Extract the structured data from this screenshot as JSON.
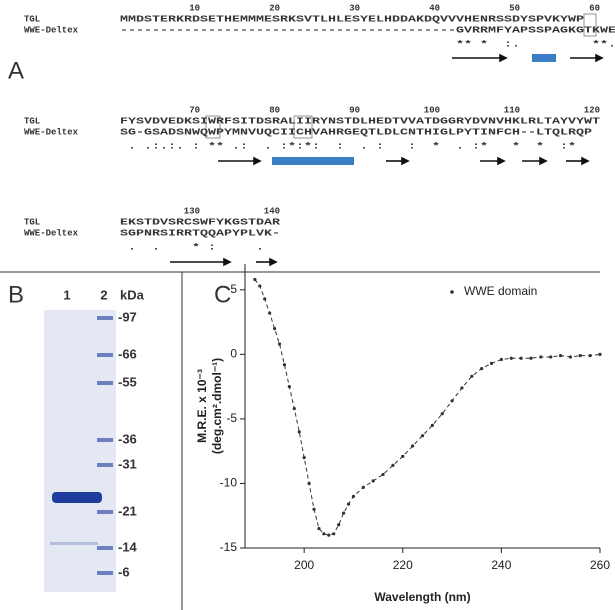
{
  "panel_a": {
    "label": "A",
    "blocks": [
      {
        "ruler": [
          "10",
          "20",
          "30",
          "40",
          "50",
          "60"
        ],
        "rows": [
          {
            "name": "TGL",
            "seq": "MMDSTERKRDSETHEMMMESRKSVTLHLESYELHDDAKDQVVVHENRSSDYSPVKYWP"
          },
          {
            "name": "WWE-Deltex",
            "seq": "------------------------------------------GVRRMFYAPSSPAGKGTKWEV"
          }
        ],
        "conservation": "                                          ** *  :.         **.  :*:*"
      },
      {
        "ruler": [
          "70",
          "80",
          "90",
          "100",
          "110",
          "120"
        ],
        "rows": [
          {
            "name": "TGL",
            "seq": "FYSVDVEDKSIWRFSITDSRALIIRYNSTDLHEDTVVATDGGRYDVNVHKLRLTAYVYWT"
          },
          {
            "name": "WWE-Deltex",
            "seq": "SG-GSADSNWQWPYMNVUQCIICHVAHRGEQTLDLCNTHIGLPYTINFCH--LTQLRQP"
          }
        ],
        "conservation": " . .:.:. : ** .:  . :*:*:  :  . :   :  *  . :*   *  *  :*"
      },
      {
        "ruler": [
          "130",
          "140"
        ],
        "rows": [
          {
            "name": "TGL",
            "seq": "EKSTDVSRCSWFYKGSTDAR"
          },
          {
            "name": "WWE-Deltex",
            "seq": "SGPNRSIRRTQQAPYPLVK-"
          }
        ],
        "conservation": " .  .    * :     ."
      }
    ]
  },
  "panel_b": {
    "label": "B",
    "lanes": [
      "1",
      "2"
    ],
    "unit": "kDa",
    "markers": [
      "-97",
      "-66",
      "-55",
      "-36",
      "-31",
      "-21",
      "-14",
      "-6"
    ]
  },
  "panel_c": {
    "label": "C"
  },
  "chart_data": {
    "type": "line",
    "x_label": "Wavelength (nm)",
    "y_label": [
      "M.R.E. x 10⁻³",
      "(deg.cm².dmol⁻¹)"
    ],
    "series": [
      {
        "name": "WWE domain",
        "color": "#333333",
        "x": [
          190,
          191,
          192,
          193,
          194,
          195,
          196,
          197,
          198,
          199,
          200,
          201,
          202,
          203,
          204,
          205,
          206,
          207,
          208,
          209,
          210,
          212,
          214,
          216,
          218,
          220,
          222,
          224,
          226,
          228,
          230,
          232,
          234,
          236,
          238,
          240,
          242,
          244,
          246,
          248,
          250,
          252,
          254,
          256,
          258,
          260
        ],
        "values": [
          5.8,
          5.3,
          4.3,
          3.2,
          2,
          0.8,
          -0.8,
          -2.5,
          -4.2,
          -6,
          -8,
          -10,
          -12,
          -13.5,
          -13.9,
          -14,
          -13.9,
          -13.2,
          -12.3,
          -11.6,
          -11,
          -10.3,
          -9.8,
          -9.3,
          -8.6,
          -7.9,
          -7.1,
          -6.3,
          -5.5,
          -4.6,
          -3.6,
          -2.6,
          -1.7,
          -1.1,
          -0.7,
          -0.4,
          -0.3,
          -0.3,
          -0.3,
          -0.2,
          -0.2,
          -0.1,
          -0.2,
          -0.1,
          -0.1,
          0
        ]
      }
    ],
    "xlim": [
      188,
      260
    ],
    "xticks": [
      200,
      220,
      240,
      260
    ],
    "ylim": [
      -15,
      7
    ],
    "yticks": [
      5,
      0,
      -5,
      -10,
      -15
    ],
    "legend": "upper right"
  }
}
